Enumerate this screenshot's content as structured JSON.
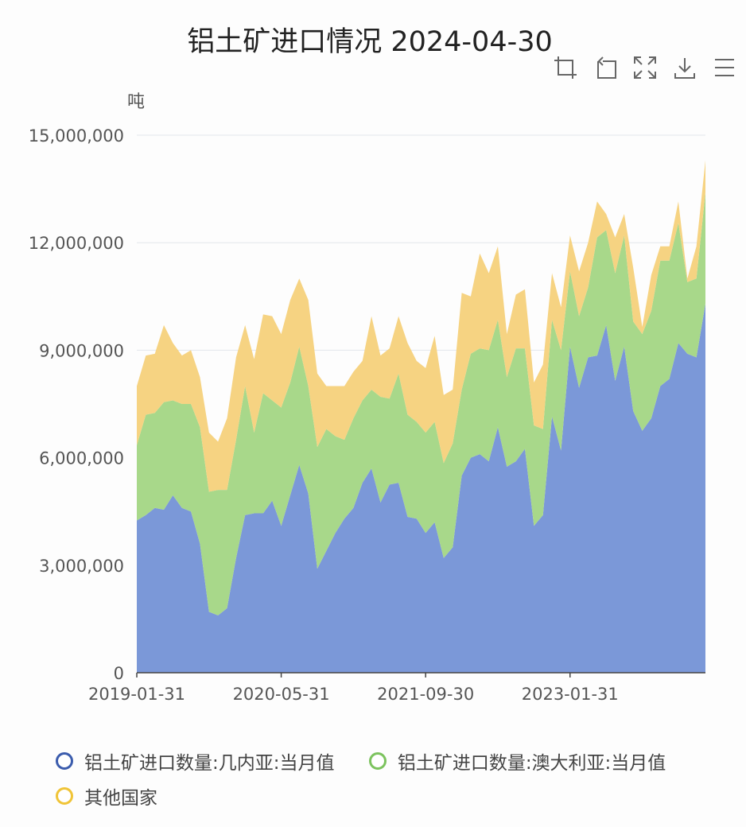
{
  "title": "铝土矿进口情况 2024-04-30",
  "unit": "吨",
  "toolbox": [
    {
      "name": "zoom-icon"
    },
    {
      "name": "zoom-reset-icon"
    },
    {
      "name": "fullscreen-icon"
    },
    {
      "name": "download-icon"
    },
    {
      "name": "menu-icon"
    }
  ],
  "chart_data": {
    "type": "area",
    "stacked": true,
    "ylim": [
      0,
      15000000
    ],
    "yticks": [
      "0",
      "3,000,000",
      "6,000,000",
      "9,000,000",
      "12,000,000",
      "15,000,000"
    ],
    "ytick_values": [
      0,
      3000000,
      6000000,
      9000000,
      12000000,
      15000000
    ],
    "xtick_labels": [
      "2019-01-31",
      "2020-05-31",
      "2021-09-30",
      "2023-01-31"
    ],
    "xtick_indices": [
      0,
      16,
      32,
      48
    ],
    "x_start": "2019-01-31",
    "x_end": "2024-04-30",
    "grid": true,
    "legend_position": "bottom",
    "series": [
      {
        "name": "铝土矿进口数量:几内亚:当月值",
        "color": "#7b98d8",
        "legend_color": "#3b5cad",
        "values": [
          4250000,
          4400000,
          4600000,
          4550000,
          4950000,
          4600000,
          4500000,
          3600000,
          1700000,
          1600000,
          1800000,
          3200000,
          4400000,
          4450000,
          4450000,
          4800000,
          4100000,
          4950000,
          5800000,
          5000000,
          2900000,
          3400000,
          3900000,
          4300000,
          4600000,
          5300000,
          5700000,
          4750000,
          5250000,
          5300000,
          4350000,
          4300000,
          3900000,
          4200000,
          3200000,
          3500000,
          5500000,
          6000000,
          6100000,
          5900000,
          6850000,
          5750000,
          5900000,
          6250000,
          4100000,
          4400000,
          7150000,
          6200000,
          9100000,
          7950000,
          8800000,
          8850000,
          9700000,
          8150000,
          9100000,
          7300000,
          6750000,
          7100000,
          8000000,
          8200000,
          9200000,
          8900000,
          8800000,
          10300000
        ]
      },
      {
        "name": "铝土矿进口数量:澳大利亚:当月值",
        "color": "#a8d88a",
        "legend_color": "#7cc35e",
        "values": [
          2100000,
          2800000,
          2650000,
          3000000,
          2650000,
          2900000,
          3000000,
          3250000,
          3350000,
          3500000,
          3300000,
          3300000,
          3600000,
          2250000,
          3350000,
          2800000,
          3300000,
          3150000,
          3300000,
          3000000,
          3400000,
          3400000,
          2700000,
          2200000,
          2500000,
          2300000,
          2200000,
          2950000,
          2400000,
          3050000,
          2850000,
          2700000,
          2800000,
          2800000,
          2650000,
          2900000,
          2400000,
          2900000,
          2950000,
          3100000,
          3000000,
          2500000,
          3150000,
          2800000,
          2800000,
          2400000,
          2700000,
          2800000,
          2100000,
          2000000,
          1950000,
          3300000,
          2650000,
          3000000,
          3100000,
          2500000,
          2700000,
          3000000,
          3500000,
          3300000,
          3350000,
          2000000,
          2200000,
          3100000
        ]
      },
      {
        "name": "其他国家",
        "color": "#f6d382",
        "legend_color": "#f0c437",
        "values": [
          1650000,
          1650000,
          1650000,
          2150000,
          1600000,
          1350000,
          1500000,
          1400000,
          1650000,
          1350000,
          2000000,
          2300000,
          1700000,
          2050000,
          2200000,
          2350000,
          2050000,
          2300000,
          1900000,
          2400000,
          2050000,
          1200000,
          1400000,
          1500000,
          1300000,
          1100000,
          2050000,
          1150000,
          1400000,
          1600000,
          2000000,
          1700000,
          1800000,
          2400000,
          1900000,
          1500000,
          2700000,
          1600000,
          2650000,
          2150000,
          2050000,
          1200000,
          1500000,
          1650000,
          1200000,
          1800000,
          1300000,
          1200000,
          1000000,
          1250000,
          1250000,
          1000000,
          450000,
          1000000,
          600000,
          1500000,
          200000,
          1000000,
          400000,
          400000,
          600000,
          100000,
          900000,
          900000
        ]
      }
    ]
  }
}
